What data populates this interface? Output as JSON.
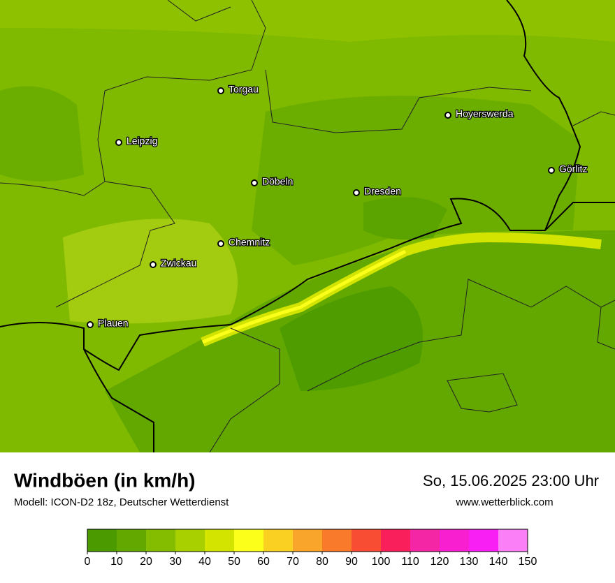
{
  "title": "Windböen (in km/h)",
  "subtitle": "Modell: ICON-D2 18z, Deutscher Wetterdienst",
  "datetime": "So, 15.06.2025 23:00 Uhr",
  "website": "www.wetterblick.com",
  "cities": [
    "Torgau",
    "Leipzig",
    "Döbeln",
    "Dresden",
    "Hoyerswerda",
    "Görlitz",
    "Chemnitz",
    "Zwickau",
    "Plauen"
  ],
  "legend": {
    "ticks": [
      0,
      10,
      20,
      30,
      40,
      50,
      60,
      70,
      80,
      90,
      100,
      110,
      120,
      130,
      140,
      150
    ],
    "colors": [
      "#4a9a00",
      "#62a800",
      "#84bd00",
      "#a8cf00",
      "#d2e400",
      "#fbff1a",
      "#fad023",
      "#f9a52b",
      "#f97a2b",
      "#f94d33",
      "#f81f5a",
      "#f526a6",
      "#f81fd0",
      "#f71ff4",
      "#fb80f8"
    ]
  }
}
